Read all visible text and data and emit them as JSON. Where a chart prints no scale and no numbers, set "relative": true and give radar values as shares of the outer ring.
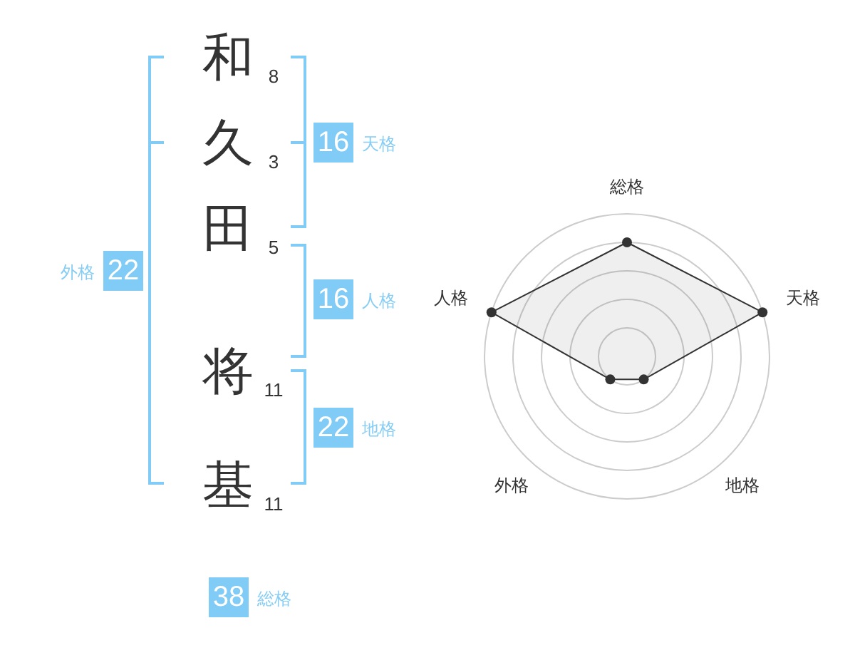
{
  "chart_data": [
    {
      "type": "other",
      "categories": [
        "和",
        "久",
        "田",
        "将",
        "基"
      ],
      "values": [
        8,
        3,
        5,
        11,
        11
      ],
      "data_labels": true,
      "annotations": [
        "16",
        "天格",
        "16",
        "人格",
        "22",
        "地格",
        "22",
        "外格",
        "38",
        "総格"
      ]
    },
    {
      "type": "radar",
      "categories": [
        "総格",
        "天格",
        "地格",
        "外格",
        "人格"
      ],
      "relative": true,
      "grid": true,
      "marker": "circle",
      "series": [
        {
          "color": "#333333",
          "values": [
            0.8,
            1,
            0.2,
            0.2,
            1
          ]
        }
      ]
    }
  ]
}
